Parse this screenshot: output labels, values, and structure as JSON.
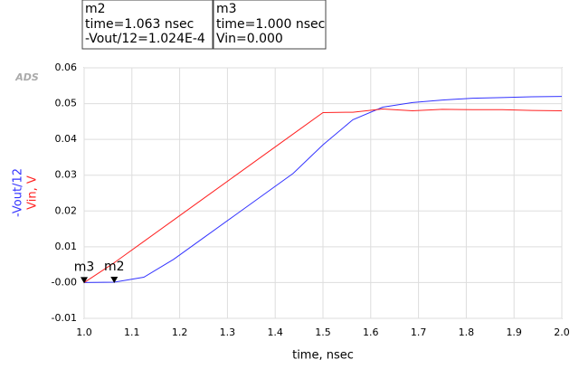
{
  "chart_data": {
    "type": "line",
    "logo": "ADS",
    "xlabel": "time, nsec",
    "x": [
      1,
      1.0625,
      1.125,
      1.1875,
      1.25,
      1.3125,
      1.375,
      1.4375,
      1.5,
      1.5625,
      1.625,
      1.6875,
      1.75,
      1.8125,
      1.875,
      1.9375,
      2
    ],
    "series": [
      {
        "name": "-Vout/12",
        "color": "#3333ff",
        "values": [
          0,
          0.0001,
          0.0015,
          0.0065,
          0.0125,
          0.0185,
          0.0245,
          0.0305,
          0.0385,
          0.0455,
          0.049,
          0.0503,
          0.051,
          0.0515,
          0.0517,
          0.0519,
          0.052
        ]
      },
      {
        "name": "Vin, V",
        "color": "#ff2222",
        "values": [
          0,
          0.0055,
          0.0115,
          0.0175,
          0.0235,
          0.0295,
          0.0355,
          0.0415,
          0.0475,
          0.0476,
          0.0485,
          0.048,
          0.0484,
          0.0483,
          0.0483,
          0.0481,
          0.048
        ]
      }
    ],
    "xlim": [
      1,
      2
    ],
    "xticks": [
      {
        "value": 1,
        "label": "1.0"
      },
      1.1,
      1.2,
      1.3,
      1.4,
      1.5,
      1.6,
      1.7,
      1.8,
      1.9,
      {
        "value": 2,
        "label": "2.0"
      }
    ],
    "ylim": [
      -0.01,
      0.06
    ],
    "yticks": [
      -0.01,
      {
        "value": 0,
        "label": "-0.00"
      },
      0.01,
      0.02,
      0.03,
      0.04,
      0.05,
      0.06
    ],
    "markers": [
      {
        "name": "m2",
        "x": 1.063,
        "y": 0.0001024,
        "lines": [
          "time=1.063 nsec",
          "-Vout/12=1.024E-4"
        ]
      },
      {
        "name": "m3",
        "x": 1.0,
        "y": 0,
        "lines": [
          "time=1.000 nsec",
          "Vin=0.000"
        ]
      }
    ]
  }
}
